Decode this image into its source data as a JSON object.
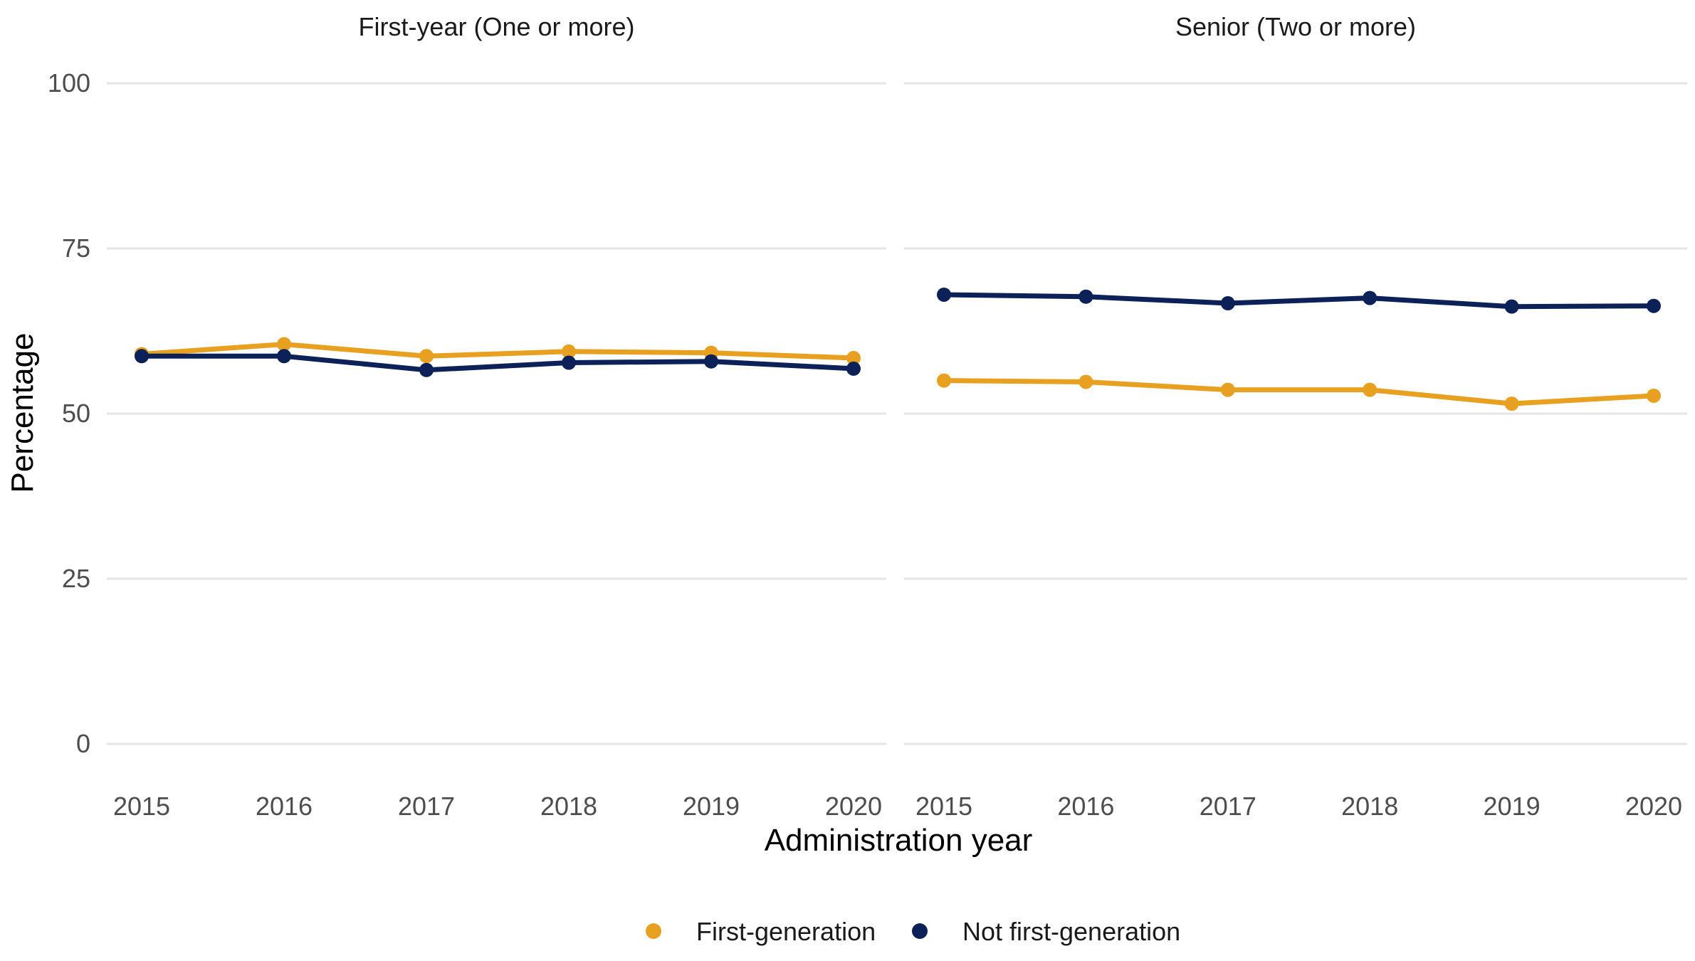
{
  "chart_data": {
    "type": "line",
    "xlabel": "Administration year",
    "ylabel": "Percentage",
    "ylim": [
      0,
      100
    ],
    "y_ticks": [
      "0",
      "25",
      "50",
      "75",
      "100"
    ],
    "x_categories": [
      "2015",
      "2016",
      "2017",
      "2018",
      "2019",
      "2020"
    ],
    "grid": "horizontal major gridlines only",
    "legend_position": "bottom",
    "legend": [
      {
        "name": "First-generation",
        "color": "#E8A020"
      },
      {
        "name": "Not first-generation",
        "color": "#0B2157"
      }
    ],
    "panels": [
      {
        "title": "First-year (One or more)",
        "series": [
          {
            "name": "First-generation",
            "color": "#E8A020",
            "values": [
              59.0,
              60.5,
              58.7,
              59.4,
              59.2,
              58.4
            ]
          },
          {
            "name": "Not first-generation",
            "color": "#0B2157",
            "values": [
              58.7,
              58.7,
              56.6,
              57.7,
              57.9,
              56.8
            ]
          }
        ]
      },
      {
        "title": "Senior (Two or more)",
        "series": [
          {
            "name": "First-generation",
            "color": "#E8A020",
            "values": [
              55.0,
              54.8,
              53.6,
              53.6,
              51.5,
              52.7
            ]
          },
          {
            "name": "Not first-generation",
            "color": "#0B2157",
            "values": [
              68.0,
              67.7,
              66.7,
              67.5,
              66.2,
              66.3
            ]
          }
        ]
      }
    ]
  }
}
